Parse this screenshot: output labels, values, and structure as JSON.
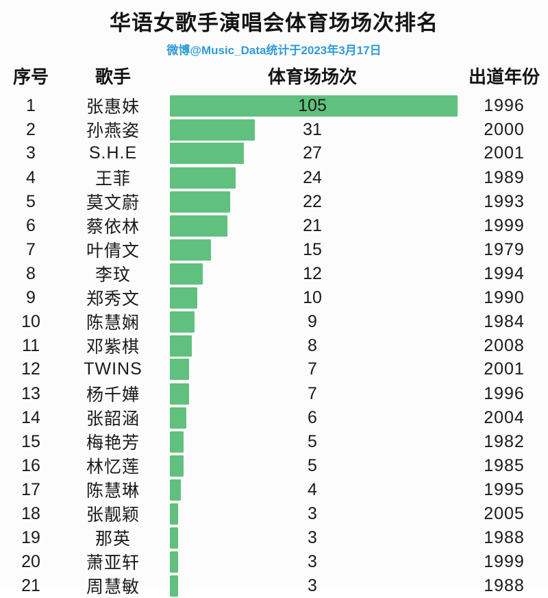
{
  "title": "华语女歌手演唱会体育场场次排名",
  "subtitle": "微博@Music_Data统计于2023年3月17日",
  "columns": {
    "rank": "序号",
    "singer": "歌手",
    "count": "体育场场次",
    "year": "出道年份"
  },
  "colors": {
    "bar": "#60c17e",
    "title": "#141414",
    "subtitle": "#2f9bd7",
    "background": "#fcfcfc"
  },
  "chart_data": {
    "type": "bar",
    "orientation": "horizontal",
    "title": "华语女歌手演唱会体育场场次排名",
    "subtitle": "微博@Music_Data统计于2023年3月17日",
    "value_label": "体育场场次",
    "max_value": 105,
    "xlim": [
      0,
      105
    ],
    "rows": [
      {
        "rank": 1,
        "singer": "张惠妹",
        "count": 105,
        "year": 1996
      },
      {
        "rank": 2,
        "singer": "孙燕姿",
        "count": 31,
        "year": 2000
      },
      {
        "rank": 3,
        "singer": "S.H.E",
        "count": 27,
        "year": 2001
      },
      {
        "rank": 4,
        "singer": "王菲",
        "count": 24,
        "year": 1989
      },
      {
        "rank": 5,
        "singer": "莫文蔚",
        "count": 22,
        "year": 1993
      },
      {
        "rank": 6,
        "singer": "蔡依林",
        "count": 21,
        "year": 1999
      },
      {
        "rank": 7,
        "singer": "叶倩文",
        "count": 15,
        "year": 1979
      },
      {
        "rank": 8,
        "singer": "李玟",
        "count": 12,
        "year": 1994
      },
      {
        "rank": 9,
        "singer": "郑秀文",
        "count": 10,
        "year": 1990
      },
      {
        "rank": 10,
        "singer": "陈慧娴",
        "count": 9,
        "year": 1984
      },
      {
        "rank": 11,
        "singer": "邓紫棋",
        "count": 8,
        "year": 2008
      },
      {
        "rank": 12,
        "singer": "TWINS",
        "count": 7,
        "year": 2001
      },
      {
        "rank": 13,
        "singer": "杨千嬅",
        "count": 7,
        "year": 1996
      },
      {
        "rank": 14,
        "singer": "张韶涵",
        "count": 6,
        "year": 2004
      },
      {
        "rank": 15,
        "singer": "梅艳芳",
        "count": 5,
        "year": 1982
      },
      {
        "rank": 16,
        "singer": "林忆莲",
        "count": 5,
        "year": 1985
      },
      {
        "rank": 17,
        "singer": "陈慧琳",
        "count": 4,
        "year": 1995
      },
      {
        "rank": 18,
        "singer": "张靓颖",
        "count": 3,
        "year": 2005
      },
      {
        "rank": 19,
        "singer": "那英",
        "count": 3,
        "year": 1988
      },
      {
        "rank": 20,
        "singer": "萧亚轩",
        "count": 3,
        "year": 1999
      },
      {
        "rank": 21,
        "singer": "周慧敏",
        "count": 3,
        "year": 1988
      }
    ]
  }
}
